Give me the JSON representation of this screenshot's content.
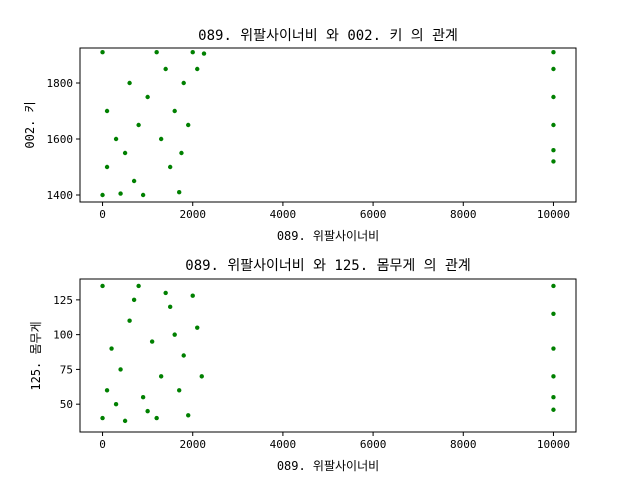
{
  "chart_data": [
    {
      "type": "scatter",
      "title": "089. 위팔사이너비  와 002. 키 의 관계",
      "xlabel": "089. 위팔사이너비",
      "ylabel": "002. 키",
      "xlim": [
        -500,
        10500
      ],
      "ylim": [
        1375,
        1925
      ],
      "xticks": [
        0,
        2000,
        4000,
        6000,
        8000,
        10000
      ],
      "yticks": [
        1400,
        1600,
        1800
      ],
      "marker_color": "#008000",
      "series": [
        {
          "values": [
            {
              "x": 0,
              "y": 1400
            },
            {
              "x": 400,
              "y": 1405
            },
            {
              "x": 900,
              "y": 1400
            },
            {
              "x": 1700,
              "y": 1410
            },
            {
              "x": 0,
              "y": 1910
            },
            {
              "x": 1200,
              "y": 1910
            },
            {
              "x": 2000,
              "y": 1910
            },
            {
              "x": 2250,
              "y": 1905
            },
            {
              "x": 100,
              "y": 1500
            },
            {
              "x": 100,
              "y": 1700
            },
            {
              "x": 300,
              "y": 1600
            },
            {
              "x": 500,
              "y": 1550
            },
            {
              "x": 600,
              "y": 1800
            },
            {
              "x": 800,
              "y": 1650
            },
            {
              "x": 1000,
              "y": 1750
            },
            {
              "x": 1300,
              "y": 1600
            },
            {
              "x": 1500,
              "y": 1500
            },
            {
              "x": 1600,
              "y": 1700
            },
            {
              "x": 1800,
              "y": 1800
            },
            {
              "x": 2100,
              "y": 1850
            },
            {
              "x": 1900,
              "y": 1650
            },
            {
              "x": 1750,
              "y": 1550
            },
            {
              "x": 1400,
              "y": 1850
            },
            {
              "x": 700,
              "y": 1450
            },
            {
              "x": 10000,
              "y": 1520
            },
            {
              "x": 10000,
              "y": 1560
            },
            {
              "x": 10000,
              "y": 1650
            },
            {
              "x": 10000,
              "y": 1750
            },
            {
              "x": 10000,
              "y": 1850
            },
            {
              "x": 10000,
              "y": 1910
            }
          ]
        }
      ]
    },
    {
      "type": "scatter",
      "title": "089. 위팔사이너비  와 125. 몸무게 의 관계",
      "xlabel": "089. 위팔사이너비",
      "ylabel": "125. 몸무게",
      "xlim": [
        -500,
        10500
      ],
      "ylim": [
        30,
        140
      ],
      "xticks": [
        0,
        2000,
        4000,
        6000,
        8000,
        10000
      ],
      "yticks": [
        50,
        75,
        100,
        125
      ],
      "marker_color": "#008000",
      "series": [
        {
          "values": [
            {
              "x": 0,
              "y": 40
            },
            {
              "x": 500,
              "y": 38
            },
            {
              "x": 1200,
              "y": 40
            },
            {
              "x": 1900,
              "y": 42
            },
            {
              "x": 0,
              "y": 135
            },
            {
              "x": 800,
              "y": 135
            },
            {
              "x": 1400,
              "y": 130
            },
            {
              "x": 2000,
              "y": 128
            },
            {
              "x": 100,
              "y": 60
            },
            {
              "x": 200,
              "y": 90
            },
            {
              "x": 400,
              "y": 75
            },
            {
              "x": 600,
              "y": 110
            },
            {
              "x": 900,
              "y": 55
            },
            {
              "x": 1100,
              "y": 95
            },
            {
              "x": 1300,
              "y": 70
            },
            {
              "x": 1600,
              "y": 100
            },
            {
              "x": 1800,
              "y": 85
            },
            {
              "x": 2100,
              "y": 105
            },
            {
              "x": 2200,
              "y": 70
            },
            {
              "x": 1700,
              "y": 60
            },
            {
              "x": 1500,
              "y": 120
            },
            {
              "x": 700,
              "y": 125
            },
            {
              "x": 300,
              "y": 50
            },
            {
              "x": 1000,
              "y": 45
            },
            {
              "x": 10000,
              "y": 46
            },
            {
              "x": 10000,
              "y": 55
            },
            {
              "x": 10000,
              "y": 70
            },
            {
              "x": 10000,
              "y": 90
            },
            {
              "x": 10000,
              "y": 115
            },
            {
              "x": 10000,
              "y": 135
            }
          ]
        }
      ]
    }
  ]
}
